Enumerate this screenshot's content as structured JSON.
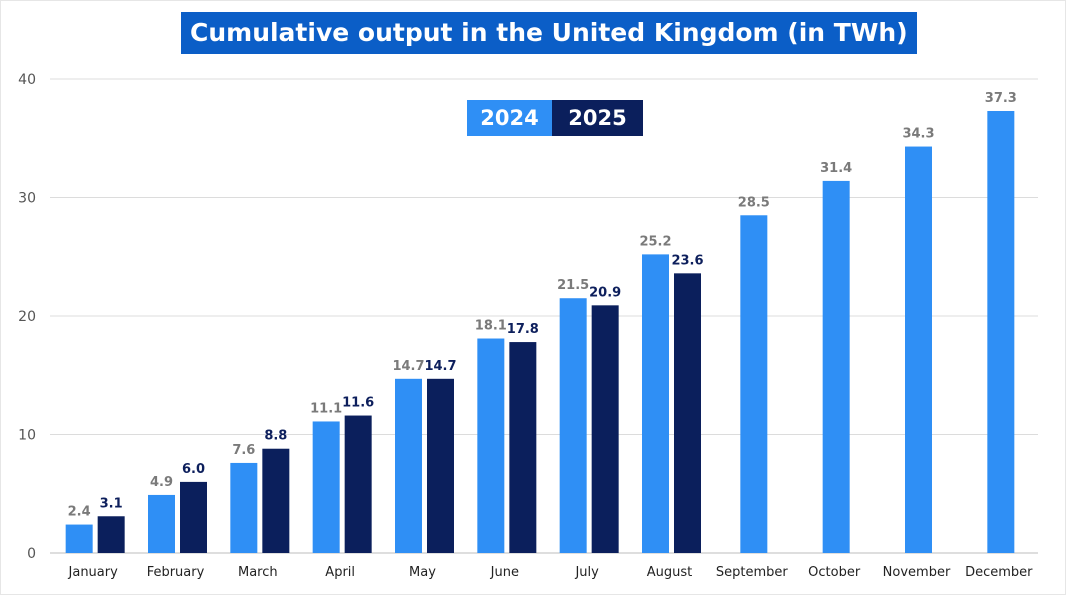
{
  "chart_data": {
    "type": "bar",
    "title": "Cumulative output in the United Kingdom (in TWh)",
    "xlabel": "",
    "ylabel": "",
    "ylim": [
      0,
      40
    ],
    "yticks": [
      0,
      10,
      20,
      30,
      40
    ],
    "grid": true,
    "legend_position": "top-center",
    "categories": [
      "January",
      "February",
      "March",
      "April",
      "May",
      "June",
      "July",
      "August",
      "September",
      "October",
      "November",
      "December"
    ],
    "series": [
      {
        "name": "2024",
        "color": "#2f8ff5",
        "values": [
          2.4,
          4.9,
          7.6,
          11.1,
          14.7,
          18.1,
          21.5,
          25.2,
          28.5,
          31.4,
          34.3,
          37.3
        ],
        "labels": [
          "2.4",
          "4.9",
          "7.6",
          "11.1",
          "14.7",
          "18.1",
          "21.5",
          "25.2",
          "28.5",
          "31.4",
          "34.3",
          "37.3"
        ]
      },
      {
        "name": "2025",
        "color": "#0b1f5c",
        "values": [
          3.1,
          6.0,
          8.8,
          11.6,
          14.7,
          17.8,
          20.9,
          23.6,
          null,
          null,
          null,
          null
        ],
        "labels": [
          "3.1",
          "6.0",
          "8.8",
          "11.6",
          "14.7",
          "17.8",
          "20.9",
          "23.6",
          "",
          "",
          "",
          ""
        ]
      }
    ]
  }
}
